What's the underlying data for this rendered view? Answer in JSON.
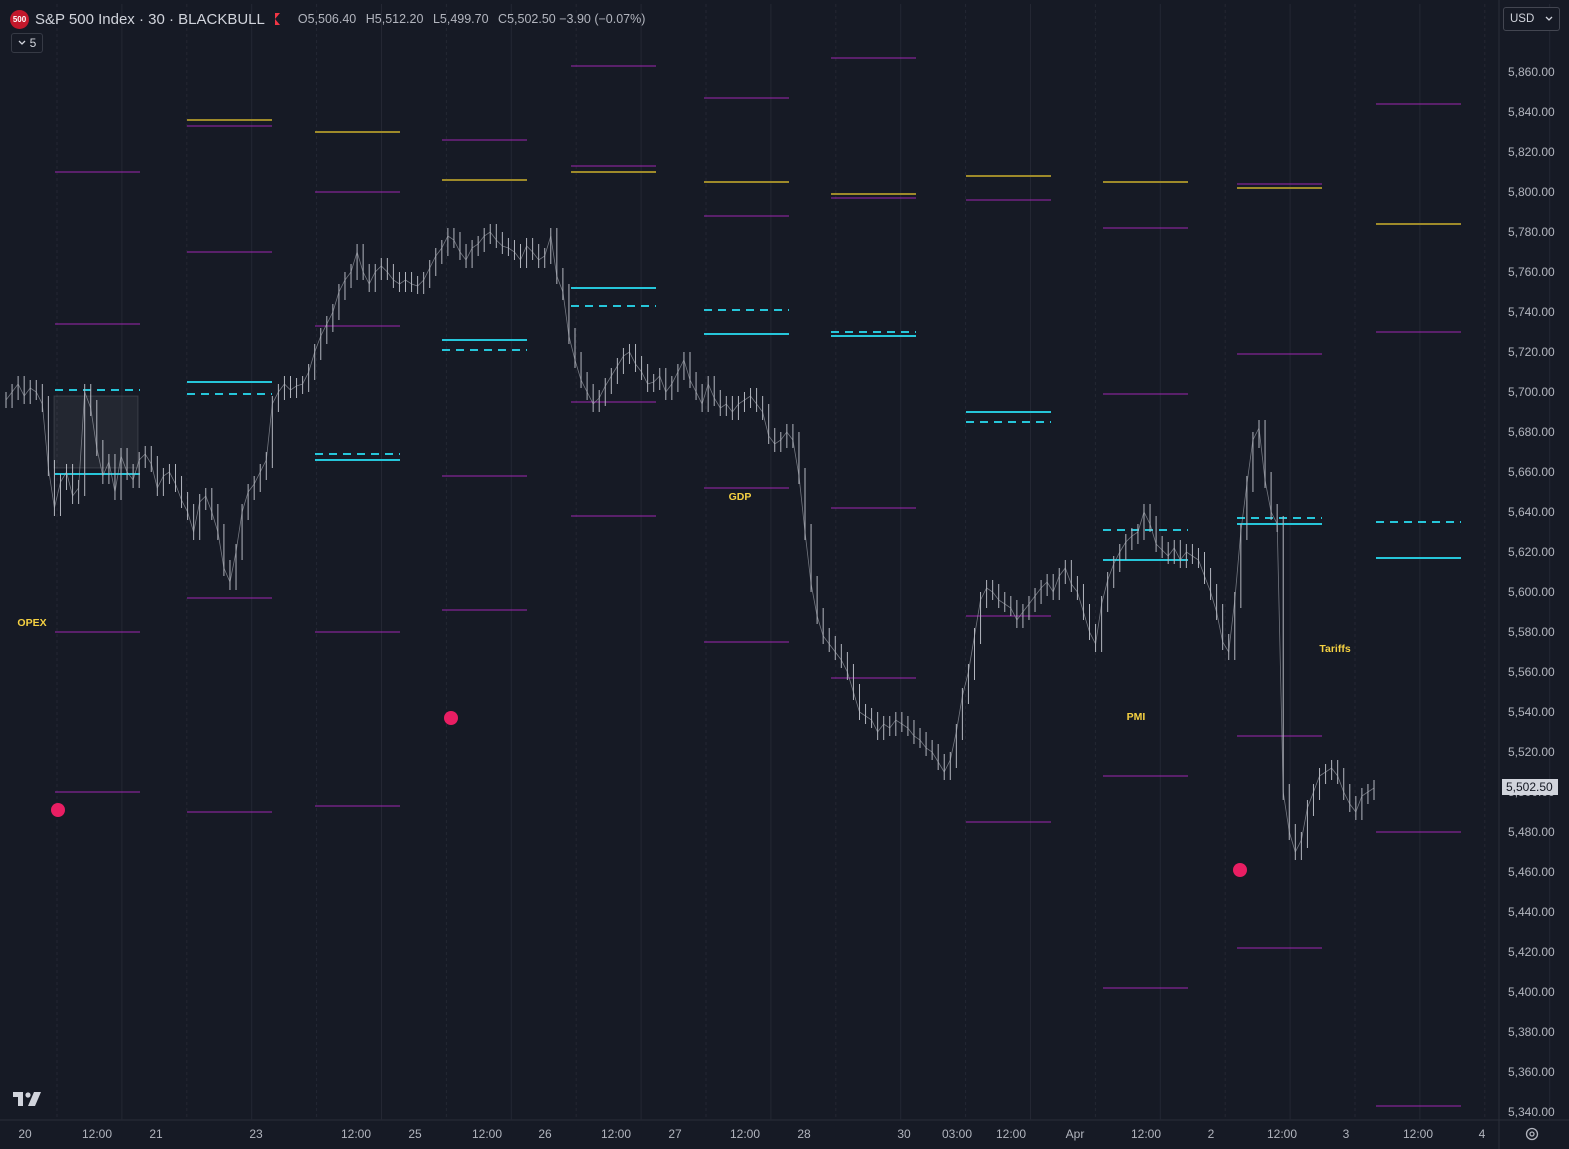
{
  "header": {
    "logo_text": "500",
    "title": "S&P 500 Index · 30 · BLACKBULL",
    "ohlc": {
      "open_label": "O",
      "open": "5,506.40",
      "high_label": "H",
      "high": "5,512.20",
      "low_label": "L",
      "low": "5,499.70",
      "close_label": "C",
      "close": "5,502.50",
      "change": "−3.90 (−0.07%)"
    }
  },
  "indicators_toggle": {
    "count": "5"
  },
  "currency": {
    "label": "USD"
  },
  "colors": {
    "background": "#161a25",
    "candles": "#b2b5be",
    "purple_levels": "#9c27b0",
    "gold_levels": "#9e8a2a",
    "cyan_levels": "#26c6da",
    "event_text": "#f5d142",
    "dots": "#e91e63"
  },
  "chart_data": {
    "type": "line",
    "title": "",
    "xlabel": "",
    "ylabel": "",
    "ylim": [
      5335,
      5868
    ],
    "price_ticks": [
      "5,860.00",
      "5,840.00",
      "5,820.00",
      "5,800.00",
      "5,780.00",
      "5,760.00",
      "5,740.00",
      "5,720.00",
      "5,700.00",
      "5,680.00",
      "5,660.00",
      "5,640.00",
      "5,620.00",
      "5,600.00",
      "5,580.00",
      "5,560.00",
      "5,540.00",
      "5,520.00",
      "5,500.00",
      "5,480.00",
      "5,460.00",
      "5,440.00",
      "5,420.00",
      "5,400.00",
      "5,380.00",
      "5,360.00",
      "5,340.00"
    ],
    "last_price": "5,502.50",
    "time_ticks": [
      "20",
      "12:00",
      "21",
      "23",
      "12:00",
      "25",
      "12:00",
      "26",
      "12:00",
      "27",
      "12:00",
      "28",
      "30",
      "03:00",
      "12:00",
      "Apr",
      "12:00",
      "2",
      "12:00",
      "3",
      "12:00",
      "4"
    ],
    "grid": true,
    "series": [
      {
        "values": [
          5696,
          5700,
          5704,
          5698,
          5702,
          5700,
          5694,
          5662,
          5642,
          5655,
          5660,
          5648,
          5652,
          5700,
          5692,
          5672,
          5658,
          5665,
          5650,
          5668,
          5660,
          5656,
          5666,
          5669,
          5664,
          5652,
          5658,
          5660,
          5654,
          5646,
          5640,
          5630,
          5645,
          5648,
          5640,
          5630,
          5612,
          5605,
          5620,
          5640,
          5650,
          5654,
          5660,
          5666,
          5694,
          5700,
          5704,
          5701,
          5703,
          5704,
          5710,
          5720,
          5728,
          5734,
          5740,
          5750,
          5756,
          5760,
          5770,
          5760,
          5754,
          5760,
          5763,
          5760,
          5756,
          5754,
          5756,
          5754,
          5753,
          5756,
          5762,
          5768,
          5772,
          5778,
          5776,
          5770,
          5766,
          5772,
          5774,
          5778,
          5780,
          5776,
          5773,
          5772,
          5770,
          5766,
          5773,
          5770,
          5766,
          5768,
          5778,
          5758,
          5750,
          5728,
          5716,
          5706,
          5700,
          5694,
          5697,
          5703,
          5708,
          5713,
          5718,
          5720,
          5714,
          5710,
          5704,
          5705,
          5708,
          5700,
          5704,
          5710,
          5716,
          5706,
          5700,
          5694,
          5704,
          5697,
          5692,
          5694,
          5690,
          5694,
          5696,
          5698,
          5694,
          5690,
          5678,
          5674,
          5676,
          5680,
          5676,
          5658,
          5630,
          5604,
          5588,
          5578,
          5574,
          5570,
          5566,
          5560,
          5550,
          5540,
          5538,
          5536,
          5530,
          5534,
          5532,
          5536,
          5534,
          5532,
          5528,
          5526,
          5522,
          5520,
          5515,
          5510,
          5516,
          5530,
          5548,
          5560,
          5578,
          5596,
          5602,
          5600,
          5596,
          5594,
          5592,
          5586,
          5590,
          5594,
          5598,
          5602,
          5605,
          5600,
          5608,
          5612,
          5604,
          5600,
          5590,
          5580,
          5574,
          5594,
          5606,
          5614,
          5620,
          5625,
          5628,
          5630,
          5640,
          5634,
          5624,
          5621,
          5618,
          5622,
          5616,
          5620,
          5618,
          5616,
          5608,
          5600,
          5590,
          5575,
          5570,
          5596,
          5630,
          5654,
          5676,
          5682,
          5656,
          5640,
          5634,
          5500,
          5480,
          5470,
          5476,
          5492,
          5500,
          5508,
          5510,
          5512,
          5508,
          5500,
          5494,
          5490,
          5498,
          5500,
          5502
        ]
      }
    ],
    "level_sets": [
      {
        "gold": null,
        "purple": [
          5810,
          5734,
          5580,
          5500
        ],
        "cyan_solid": 5659,
        "cyan_dash": 5701
      },
      {
        "gold": 5836,
        "purple": [
          5833,
          5770,
          5597,
          5490
        ],
        "cyan_solid": 5705,
        "cyan_dash": 5699
      },
      {
        "gold": 5830,
        "purple": [
          5800,
          5733,
          5580,
          5493
        ],
        "cyan_solid": 5666,
        "cyan_dash": 5669
      },
      {
        "gold": 5806,
        "purple": [
          5826,
          5658,
          5591
        ],
        "cyan_solid": 5726,
        "cyan_dash": 5721
      },
      {
        "gold": 5810,
        "purple": [
          5863,
          5813,
          5695,
          5638
        ],
        "cyan_solid": 5752,
        "cyan_dash": 5743
      },
      {
        "gold": 5805,
        "purple": [
          5847,
          5788,
          5652,
          5575
        ],
        "cyan_solid": 5729,
        "cyan_dash": 5741
      },
      {
        "gold": 5799,
        "purple": [
          5867,
          5797,
          5642,
          5557
        ],
        "cyan_solid": 5728,
        "cyan_dash": 5730
      },
      {
        "gold": 5808,
        "purple": [
          5796,
          5588,
          5485
        ],
        "cyan_solid": 5690,
        "cyan_dash": 5685
      },
      {
        "gold": 5805,
        "purple": [
          5782,
          5699,
          5508,
          5402
        ],
        "cyan_solid": 5616,
        "cyan_dash": 5631
      },
      {
        "gold": 5802,
        "purple": [
          5804,
          5719,
          5528,
          5422
        ],
        "cyan_solid": 5634,
        "cyan_dash": 5637
      },
      {
        "gold": 5784,
        "purple": [
          5844,
          5730,
          5480,
          5343
        ],
        "cyan_solid": 5617,
        "cyan_dash": 5635
      }
    ],
    "annotations": [
      {
        "text": "OPEX",
        "price": 5583
      },
      {
        "text": "GDP",
        "price": 5646
      },
      {
        "text": "PMI",
        "price": 5536
      },
      {
        "text": "Tariffs",
        "price": 5570
      }
    ],
    "event_dots": [
      5491,
      5537,
      5461
    ]
  }
}
